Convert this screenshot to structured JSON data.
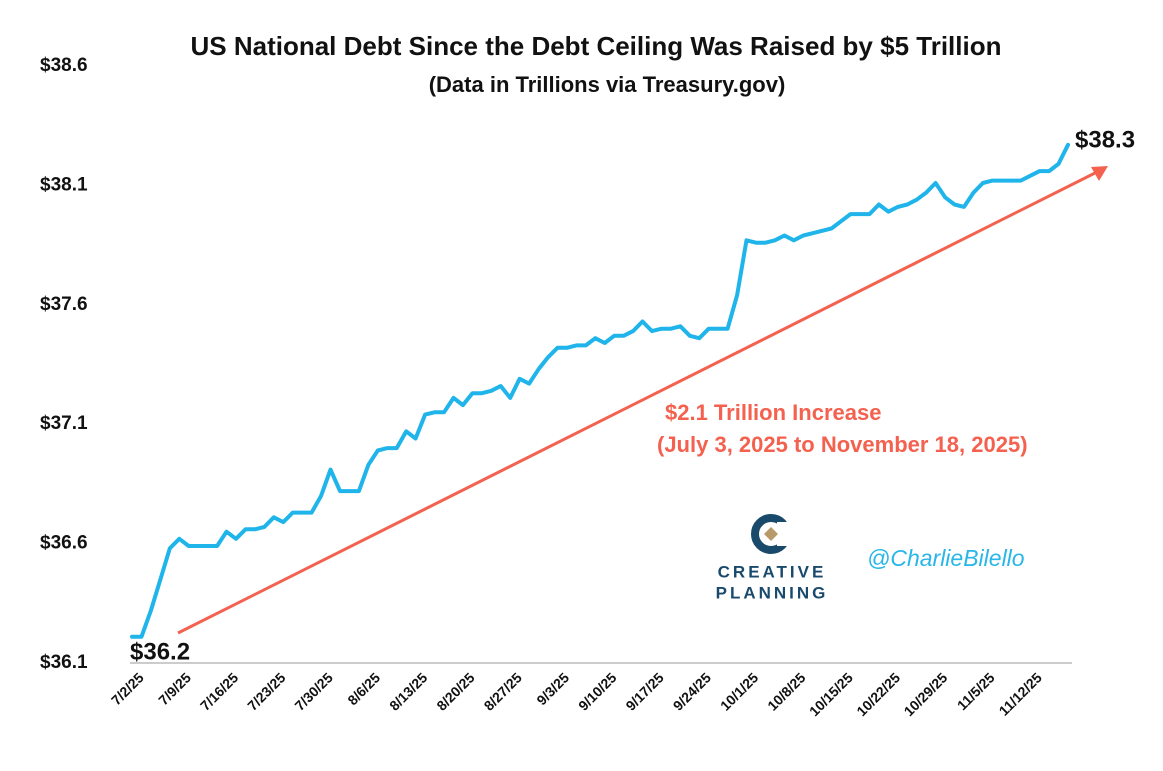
{
  "chart_data": {
    "type": "line",
    "title": "US National Debt Since the Debt Ceiling Was Raised by $5 Trillion",
    "subtitle": "(Data in Trillions via Treasury.gov)",
    "categories": [
      "7/2/25",
      null,
      null,
      null,
      null,
      "7/9/25",
      null,
      null,
      null,
      null,
      "7/16/25",
      null,
      null,
      null,
      null,
      "7/23/25",
      null,
      null,
      null,
      null,
      "7/30/25",
      null,
      null,
      null,
      null,
      "8/6/25",
      null,
      null,
      null,
      null,
      "8/13/25",
      null,
      null,
      null,
      null,
      "8/20/25",
      null,
      null,
      null,
      null,
      "8/27/25",
      null,
      null,
      null,
      null,
      "9/3/25",
      null,
      null,
      null,
      null,
      "9/10/25",
      null,
      null,
      null,
      null,
      "9/17/25",
      null,
      null,
      null,
      null,
      "9/24/25",
      null,
      null,
      null,
      null,
      "10/1/25",
      null,
      null,
      null,
      null,
      "10/8/25",
      null,
      null,
      null,
      null,
      "10/15/25",
      null,
      null,
      null,
      null,
      "10/22/25",
      null,
      null,
      null,
      null,
      "10/29/25",
      null,
      null,
      null,
      null,
      "11/5/25",
      null,
      null,
      null,
      null,
      "11/12/25",
      null,
      null,
      null,
      null
    ],
    "series": [
      {
        "name": "US National Debt",
        "color": "#1fb4ea",
        "values": [
          36.21,
          36.21,
          36.32,
          36.45,
          36.58,
          36.62,
          36.59,
          36.59,
          36.59,
          36.59,
          36.65,
          36.62,
          36.66,
          36.66,
          36.67,
          36.71,
          36.69,
          36.73,
          36.73,
          36.73,
          36.8,
          36.91,
          36.82,
          36.82,
          36.82,
          36.93,
          36.99,
          37.0,
          37.0,
          37.07,
          37.04,
          37.14,
          37.15,
          37.15,
          37.21,
          37.18,
          37.23,
          37.23,
          37.24,
          37.26,
          37.21,
          37.29,
          37.27,
          37.33,
          37.38,
          37.42,
          37.42,
          37.43,
          37.43,
          37.46,
          37.44,
          37.47,
          37.47,
          37.49,
          37.53,
          37.49,
          37.5,
          37.5,
          37.51,
          37.47,
          37.46,
          37.5,
          37.5,
          37.5,
          37.64,
          37.87,
          37.86,
          37.86,
          37.87,
          37.89,
          37.87,
          37.89,
          37.9,
          37.91,
          37.92,
          37.95,
          37.98,
          37.98,
          37.98,
          38.02,
          37.99,
          38.01,
          38.02,
          38.04,
          38.07,
          38.11,
          38.05,
          38.02,
          38.01,
          38.07,
          38.11,
          38.12,
          38.12,
          38.12,
          38.12,
          38.14,
          38.16,
          38.16,
          38.19,
          38.27
        ]
      }
    ],
    "ylim": [
      36.1,
      38.6
    ],
    "yticks": [
      {
        "value": 36.1,
        "label": "$36.1"
      },
      {
        "value": 36.6,
        "label": "$36.6"
      },
      {
        "value": 37.1,
        "label": "$37.1"
      },
      {
        "value": 37.6,
        "label": "$37.6"
      },
      {
        "value": 38.1,
        "label": "$38.1"
      },
      {
        "value": 38.6,
        "label": "$38.6"
      }
    ],
    "grid": false,
    "annotations": [
      "$36.2",
      "$38.3",
      "$2.1 Trillion Increase",
      "(July 3, 2025 to November 18, 2025)"
    ],
    "arrow_color": "#f4614f",
    "watermark": {
      "logo_top": "CREATIVE",
      "logo_bottom": "PLANNING",
      "handle": "@CharlieBilello"
    }
  }
}
